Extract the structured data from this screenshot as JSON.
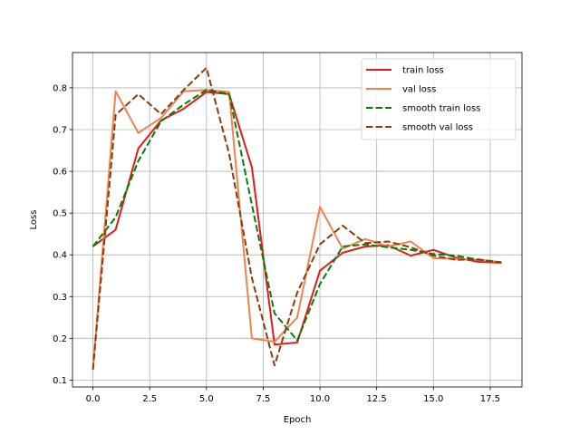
{
  "chart_data": {
    "type": "line",
    "title": "",
    "xlabel": "Epoch",
    "ylabel": "Loss",
    "xlim": [
      -0.9,
      18.9
    ],
    "ylim": [
      0.0835,
      0.8845
    ],
    "xticks": [
      0.0,
      2.5,
      5.0,
      7.5,
      10.0,
      12.5,
      15.0,
      17.5
    ],
    "xtick_labels": [
      "0.0",
      "2.5",
      "5.0",
      "7.5",
      "10.0",
      "12.5",
      "15.0",
      "17.5"
    ],
    "yticks": [
      0.1,
      0.2,
      0.3,
      0.4,
      0.5,
      0.6,
      0.7,
      0.8
    ],
    "ytick_labels": [
      "0.1",
      "0.2",
      "0.3",
      "0.4",
      "0.5",
      "0.6",
      "0.7",
      "0.8"
    ],
    "grid": true,
    "legend_position": "top-right",
    "x": [
      0,
      1,
      2,
      3,
      4,
      5,
      6,
      7,
      8,
      9,
      10,
      11,
      12,
      13,
      14,
      15,
      16,
      17,
      18
    ],
    "series": [
      {
        "name": "train loss",
        "color": "#e31a1c",
        "style": "solid",
        "values": [
          0.42,
          0.46,
          0.655,
          0.722,
          0.75,
          0.79,
          0.785,
          0.61,
          0.185,
          0.19,
          0.362,
          0.405,
          0.42,
          0.423,
          0.398,
          0.412,
          0.393,
          0.383,
          0.381
        ]
      },
      {
        "name": "val loss",
        "color": "#f0824c",
        "style": "solid",
        "values": [
          0.125,
          0.792,
          0.692,
          0.728,
          0.792,
          0.795,
          0.79,
          0.2,
          0.192,
          0.25,
          0.515,
          0.415,
          0.438,
          0.42,
          0.432,
          0.392,
          0.39,
          0.388,
          0.382
        ]
      },
      {
        "name": "smooth train loss",
        "color": "#008000",
        "style": "dashed",
        "values": [
          0.42,
          0.49,
          0.625,
          0.72,
          0.76,
          0.795,
          0.785,
          0.52,
          0.26,
          0.195,
          0.33,
          0.42,
          0.425,
          0.418,
          0.412,
          0.402,
          0.398,
          0.388,
          0.382
        ]
      },
      {
        "name": "smooth val loss",
        "color": "#8b3c0c",
        "style": "dashed",
        "values": [
          0.125,
          0.735,
          0.785,
          0.737,
          0.795,
          0.848,
          0.642,
          0.345,
          0.135,
          0.31,
          0.425,
          0.47,
          0.428,
          0.432,
          0.418,
          0.398,
          0.388,
          0.389,
          0.382
        ]
      }
    ]
  }
}
